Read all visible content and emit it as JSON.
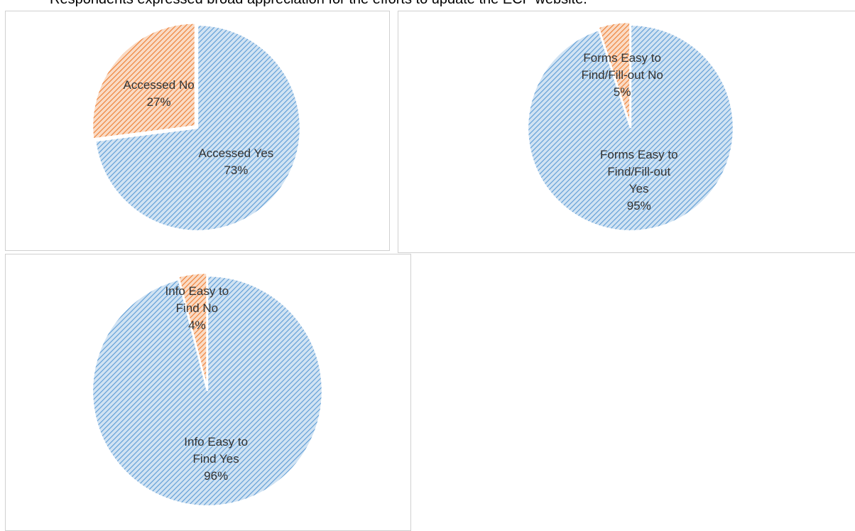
{
  "caption": "Respondents expressed broad appreciation for the efforts to update the ECF website.",
  "chart_data": [
    {
      "type": "pie",
      "categories": [
        "Accessed Yes",
        "Accessed No"
      ],
      "values": [
        73,
        27
      ],
      "value_labels": [
        "73%",
        "27%"
      ],
      "colors": [
        "#5b9bd5",
        "#ed7d31"
      ]
    },
    {
      "type": "pie",
      "categories": [
        "Forms Easy to Find/Fill-out Yes",
        "Forms Easy to Find/Fill-out No"
      ],
      "values": [
        95,
        5
      ],
      "value_labels": [
        "95%",
        "5%"
      ],
      "colors": [
        "#5b9bd5",
        "#ed7d31"
      ]
    },
    {
      "type": "pie",
      "categories": [
        "Info Easy to Find Yes",
        "Info Easy to Find No"
      ],
      "values": [
        96,
        4
      ],
      "value_labels": [
        "96%",
        "4%"
      ],
      "colors": [
        "#5b9bd5",
        "#ed7d31"
      ]
    }
  ]
}
